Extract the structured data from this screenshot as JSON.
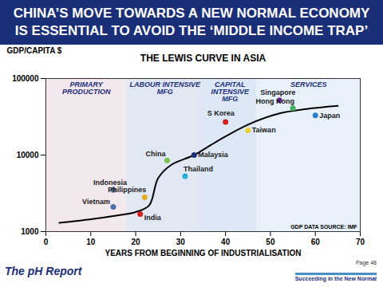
{
  "page": {
    "title_lines": [
      "CHINA’S MOVE TOWARDS A NEW NORMAL ECONOMY",
      "IS ESSENTIAL TO AVOID THE ‘MIDDLE INCOME TRAP’"
    ],
    "footer_left": "The pH Report",
    "page_number": "Page 48",
    "tagline": "Succeeding in the New Normal"
  },
  "chart_data": {
    "type": "scatter",
    "title": "THE LEWIS CURVE IN ASIA",
    "x_label": "YEARS FROM BEGINNING OF INDUSTRIALISATION",
    "y_label": "GDP/CAPITA $",
    "source": "GDP DATA SOURCE: IMF",
    "log": "y",
    "grid": false,
    "xlim": [
      0,
      70
    ],
    "xticks": [
      0,
      10,
      20,
      30,
      40,
      50,
      60,
      70
    ],
    "ylim": [
      1000,
      100000
    ],
    "yticks": [
      1000,
      10000,
      100000
    ],
    "regions": [
      {
        "label": "PRIMARY\nPRODUCTION",
        "x": [
          0,
          18
        ],
        "color": "#f4e8ef"
      },
      {
        "label": "LABOUR INTENSIVE\nMFG",
        "x": [
          18,
          35
        ],
        "color": "#e2e7f4"
      },
      {
        "label": "CAPITAL\nINTENSIVE\nMFG",
        "x": [
          35,
          47
        ],
        "color": "#dde8f6"
      },
      {
        "label": "SERVICES",
        "x": [
          47,
          70
        ],
        "color": "#e8f0fa"
      }
    ],
    "series": [
      {
        "type": "line",
        "color": "#000000",
        "x": [
          3,
          10,
          15,
          20,
          23,
          25,
          28,
          33,
          38,
          45,
          52,
          58,
          65
        ],
        "values": [
          1300,
          1450,
          1600,
          1800,
          2200,
          5000,
          7500,
          10000,
          15000,
          25000,
          35000,
          40000,
          44000
        ]
      },
      {
        "type": "scatter",
        "marker": "circle",
        "labels": [
          "Vietnam",
          "Indonesia",
          "Philippines",
          "India",
          "China",
          "Thailand",
          "Malaysia",
          "S Korea",
          "Taiwan",
          "Singapore",
          "Hong Kong",
          "Japan"
        ],
        "x": [
          15,
          15,
          22,
          21,
          27,
          31,
          33,
          40,
          45,
          52,
          55,
          60
        ],
        "values": [
          2100,
          3500,
          2800,
          1700,
          8500,
          5300,
          10000,
          27000,
          21000,
          52000,
          41000,
          33000
        ],
        "colors": [
          "#4f6fa8",
          "#5a6f9a",
          "#e0b020",
          "#d42020",
          "#7ac050",
          "#20b0d8",
          "#1b2f78",
          "#d42020",
          "#e8d030",
          "#7030a0",
          "#40b060",
          "#2a80c8"
        ]
      }
    ]
  }
}
